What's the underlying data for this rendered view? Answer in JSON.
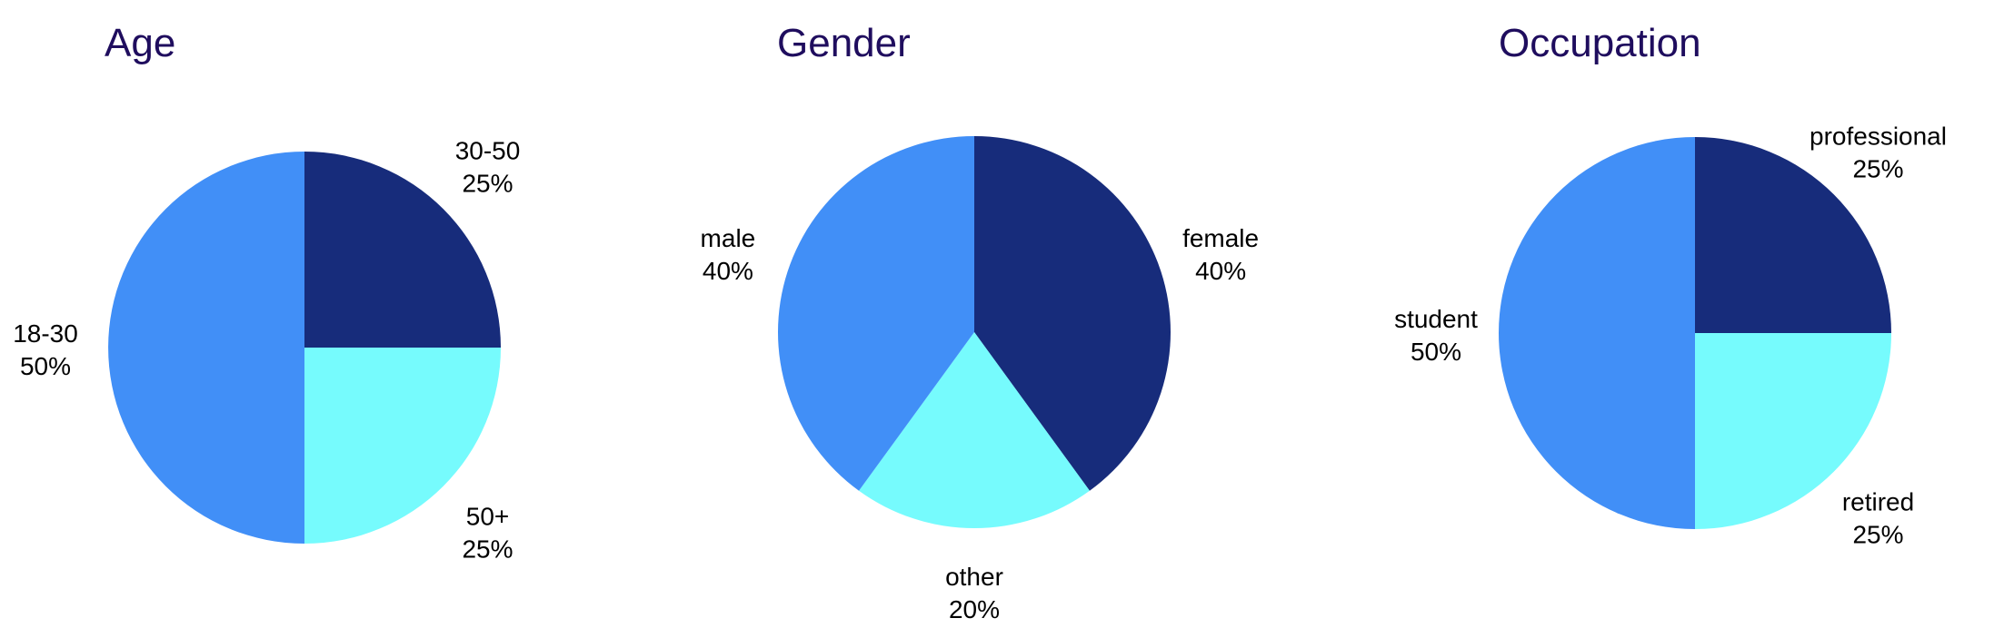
{
  "chart_data": [
    {
      "type": "pie",
      "title": "Age",
      "slices": [
        {
          "label": "30-50",
          "value": 25,
          "color": "#172c7b"
        },
        {
          "label": "50+",
          "value": 25,
          "color": "#76fbfd"
        },
        {
          "label": "18-30",
          "value": 50,
          "color": "#418ff7"
        }
      ],
      "start": "12 o'clock",
      "direction": "clockwise"
    },
    {
      "type": "pie",
      "title": "Gender",
      "slices": [
        {
          "label": "female",
          "value": 40,
          "color": "#172c7b"
        },
        {
          "label": "other",
          "value": 20,
          "color": "#76fbfd"
        },
        {
          "label": "male",
          "value": 40,
          "color": "#418ff7"
        }
      ],
      "start": "12 o'clock",
      "direction": "clockwise"
    },
    {
      "type": "pie",
      "title": "Occupation",
      "slices": [
        {
          "label": "professional",
          "value": 25,
          "color": "#172c7b"
        },
        {
          "label": "retired",
          "value": 25,
          "color": "#76fbfd"
        },
        {
          "label": "student",
          "value": 50,
          "color": "#418ff7"
        }
      ],
      "start": "12 o'clock",
      "direction": "clockwise"
    }
  ],
  "colors": {
    "title": "#1f0d5e",
    "label": "#000000"
  }
}
